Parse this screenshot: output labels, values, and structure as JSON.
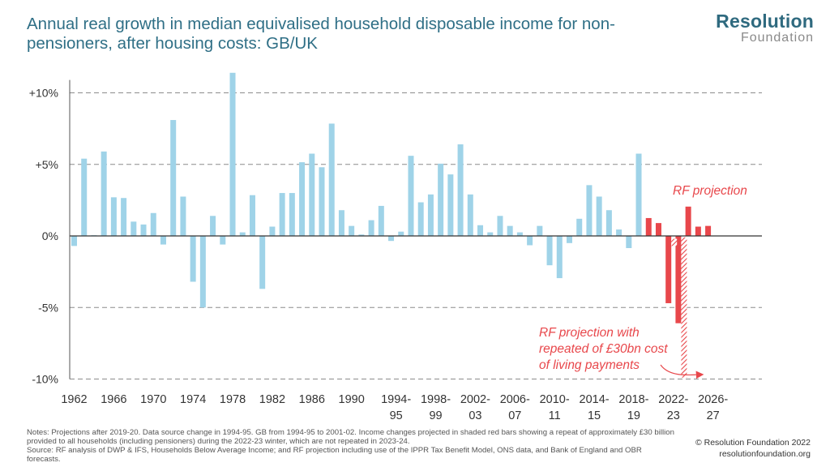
{
  "header": {
    "title": "Annual real growth in median equivalised household disposable income for non-pensioners, after housing costs: GB/UK"
  },
  "logo": {
    "line1": "Resolution",
    "line2": "Foundation"
  },
  "colors": {
    "historic": "#9fd3e8",
    "projection": "#e8474b",
    "hatch": "#e8474b",
    "gridline": "#8c8c8c",
    "axis_text": "#333333",
    "annotation": "#e8474b"
  },
  "chart_data": {
    "type": "bar",
    "title": "Annual real growth in median equivalised household disposable income for non-pensioners, after housing costs: GB/UK",
    "xlabel": "",
    "ylabel": "",
    "ylim": [
      -10,
      13
    ],
    "grid": true,
    "y_ticks": [
      {
        "value": 10,
        "label": "+10%"
      },
      {
        "value": 5,
        "label": "+5%"
      },
      {
        "value": 0,
        "label": "0%"
      },
      {
        "value": -5,
        "label": "-5%"
      },
      {
        "value": -10,
        "label": "-10%"
      }
    ],
    "x_ticks": [
      {
        "index": 0,
        "line1": "1962",
        "line2": ""
      },
      {
        "index": 4,
        "line1": "1966",
        "line2": ""
      },
      {
        "index": 8,
        "line1": "1970",
        "line2": ""
      },
      {
        "index": 12,
        "line1": "1974",
        "line2": ""
      },
      {
        "index": 16,
        "line1": "1978",
        "line2": ""
      },
      {
        "index": 20,
        "line1": "1982",
        "line2": ""
      },
      {
        "index": 24,
        "line1": "1986",
        "line2": ""
      },
      {
        "index": 28,
        "line1": "1990",
        "line2": ""
      },
      {
        "index": 32.5,
        "line1": "1994-",
        "line2": "95"
      },
      {
        "index": 36.5,
        "line1": "1998-",
        "line2": "99"
      },
      {
        "index": 40.5,
        "line1": "2002-",
        "line2": "03"
      },
      {
        "index": 44.5,
        "line1": "2006-",
        "line2": "07"
      },
      {
        "index": 48.5,
        "line1": "2010-",
        "line2": "11"
      },
      {
        "index": 52.5,
        "line1": "2014-",
        "line2": "15"
      },
      {
        "index": 56.5,
        "line1": "2018-",
        "line2": "19"
      },
      {
        "index": 60.5,
        "line1": "2022-",
        "line2": "23"
      },
      {
        "index": 64.5,
        "line1": "2026-",
        "line2": "27"
      }
    ],
    "series": [
      {
        "kind": "historic",
        "values": [
          -0.7,
          5.4,
          0.05,
          5.9,
          2.7,
          2.65,
          1.0,
          0.8,
          1.6,
          -0.6,
          8.1,
          2.75,
          -3.2,
          -5.0,
          1.4,
          -0.6,
          11.4,
          0.25,
          2.85,
          -3.7,
          0.65,
          3.0,
          3.0,
          5.15,
          5.75,
          4.8,
          7.85,
          1.8,
          0.7,
          0.1,
          1.1,
          2.1,
          -0.35,
          0.3,
          5.6,
          2.35,
          2.9,
          5.05,
          4.3,
          6.4,
          2.9,
          0.75,
          0.25,
          1.4,
          0.7,
          0.25,
          -0.65,
          0.7,
          -2.05,
          -2.95,
          -0.5,
          1.2,
          3.55,
          2.75,
          1.8,
          0.45,
          -0.85,
          5.75
        ]
      },
      {
        "kind": "projection",
        "start_index": 58,
        "values": [
          1.25,
          0.9,
          -4.7,
          -6.1,
          2.05,
          0.65,
          0.7
        ]
      },
      {
        "kind": "projection-repeat-payments",
        "bars": [
          {
            "index": 60,
            "from": -0.7,
            "to": -0.2
          },
          {
            "index": 61,
            "from": -9.9,
            "to": -0.1
          }
        ]
      }
    ],
    "annotations": [
      {
        "text": "RF projection",
        "lines": [
          "RF projection"
        ]
      },
      {
        "text": "RF projection with repeated of £30bn cost of living payments",
        "lines": [
          "RF projection with",
          "repeated of £30bn cost",
          "of living payments"
        ]
      }
    ]
  },
  "notes": {
    "line1": "Notes: Projections after 2019-20. Data source change in 1994-95. GB from 1994-95 to 2001-02. Income changes projected in shaded red bars showing a repeat of approximately £30 billion provided to all households (including pensioners) during the 2022-23 winter, which are not repeated in 2023-24.",
    "line2": "Source: RF analysis of DWP & IFS, Households Below Average Income; and RF projection including use of the IPPR Tax Benefit Model, ONS data, and Bank of England and OBR forecasts."
  },
  "footer": {
    "copyright": "© Resolution Foundation 2022",
    "website": "resolutionfoundation.org"
  }
}
